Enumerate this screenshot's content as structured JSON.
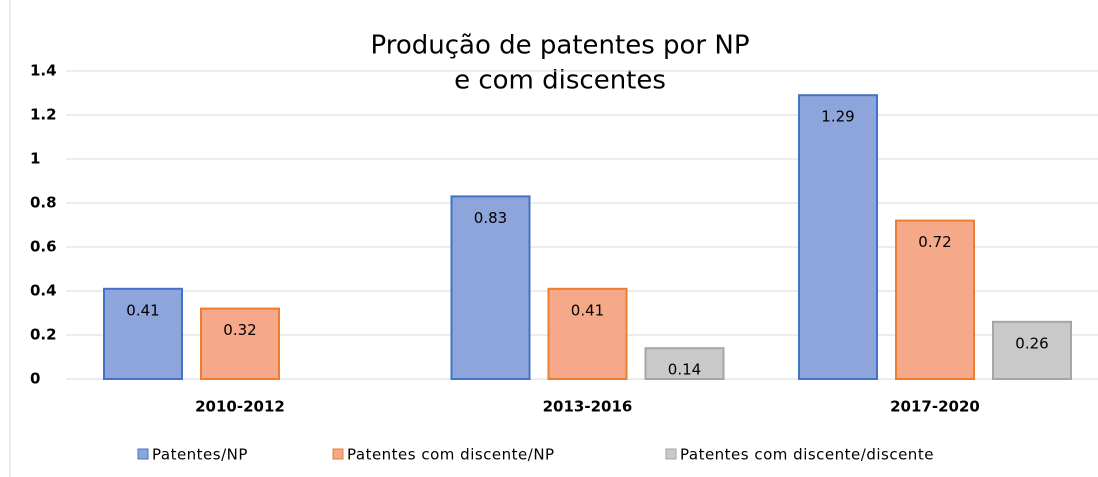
{
  "chart_data": {
    "type": "bar",
    "title": [
      "Produção de patentes por NP",
      "e com discentes"
    ],
    "categories": [
      "2010-2012",
      "2013-2016",
      "2017-2020"
    ],
    "series": [
      {
        "name": "Patentes/NP",
        "color": "#8ea5dc",
        "border": "#4472c4",
        "values": [
          0.41,
          0.83,
          1.29
        ]
      },
      {
        "name": "Patentes com discente/NP",
        "color": "#f5a989",
        "border": "#ed7d31",
        "values": [
          0.32,
          0.41,
          0.72
        ]
      },
      {
        "name": "Patentes com discente/discente",
        "color": "#c9c9c9",
        "border": "#a5a5a5",
        "values": [
          null,
          0.14,
          0.26
        ]
      }
    ],
    "ylim": [
      0,
      1.4
    ],
    "yticks": [
      0,
      0.2,
      0.4,
      0.6,
      0.8,
      1,
      1.2,
      1.4
    ],
    "grid": true,
    "legend": "bottom",
    "data_labels": true
  }
}
